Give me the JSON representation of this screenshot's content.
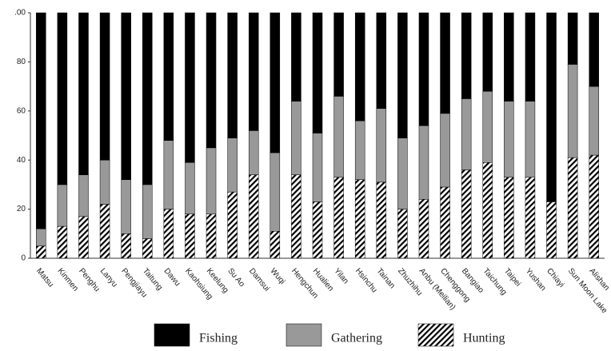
{
  "chart_data": {
    "type": "stacked_bar",
    "categories": [
      "Matsu",
      "Kinmen",
      "Penghu",
      "Lanyu",
      "Pengjiayu",
      "Taitung",
      "Dawu",
      "Kaohsiung",
      "Keelung",
      "Su Ao",
      "Damsui",
      "Wuqi",
      "Hengchun",
      "Hualien",
      "Yilan",
      "Hsinchu",
      "Tainan",
      "Zhuzhihu",
      "Anbu (Meilian)",
      "Chenggong",
      "Bangiao",
      "Taichung",
      "Taipei",
      "Yushan",
      "Chiayi",
      "Sun Moon Lake",
      "Alishan"
    ],
    "series": [
      {
        "name": "Hunting",
        "color": "#000000",
        "pattern": "hatch",
        "values": [
          5,
          13,
          17,
          22,
          10,
          8,
          20,
          18,
          18,
          27,
          34,
          11,
          34,
          23,
          33,
          32,
          31,
          20,
          24,
          29,
          36,
          39,
          33,
          33,
          23,
          41,
          42
        ]
      },
      {
        "name": "Gathering",
        "color": "#999999",
        "values": [
          7,
          17,
          17,
          18,
          22,
          22,
          28,
          21,
          27,
          22,
          18,
          32,
          30,
          28,
          33,
          24,
          30,
          29,
          30,
          30,
          29,
          29,
          31,
          31,
          0,
          38,
          28
        ]
      },
      {
        "name": "Fishing",
        "color": "#000000",
        "values": [
          88,
          70,
          66,
          60,
          68,
          70,
          52,
          61,
          55,
          51,
          48,
          57,
          36,
          49,
          34,
          44,
          39,
          51,
          46,
          41,
          35,
          32,
          36,
          36,
          77,
          21,
          30
        ]
      }
    ],
    "legend_order": [
      "Fishing",
      "Gathering",
      "Hunting"
    ],
    "ylim": [
      0,
      100
    ],
    "yticks": [
      0,
      20,
      40,
      60,
      80,
      {
        "value": 100,
        "label": ".00"
      }
    ]
  }
}
